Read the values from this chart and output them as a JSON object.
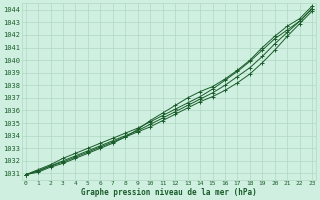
{
  "xlabel_label": "Graphe pression niveau de la mer (hPa)",
  "x_ticks": [
    0,
    1,
    2,
    3,
    4,
    5,
    6,
    7,
    8,
    9,
    10,
    11,
    12,
    13,
    14,
    15,
    16,
    17,
    18,
    19,
    20,
    21,
    22,
    23
  ],
  "ylim": [
    1030.5,
    1044.5
  ],
  "xlim": [
    -0.3,
    23.3
  ],
  "yticks": [
    1031,
    1032,
    1033,
    1034,
    1035,
    1036,
    1037,
    1038,
    1039,
    1040,
    1041,
    1042,
    1043,
    1044
  ],
  "bg_color": "#cff0e0",
  "grid_color": "#b0d8c4",
  "line_color": "#1a5c2a",
  "series": [
    [
      1030.9,
      1031.2,
      1031.6,
      1031.9,
      1032.3,
      1032.7,
      1033.1,
      1033.5,
      1033.9,
      1034.3,
      1034.7,
      1035.2,
      1035.7,
      1036.2,
      1036.7,
      1037.1,
      1037.6,
      1038.2,
      1038.9,
      1039.8,
      1040.8,
      1041.9,
      1042.9,
      1043.9
    ],
    [
      1030.9,
      1031.3,
      1031.7,
      1032.2,
      1032.6,
      1033.0,
      1033.4,
      1033.8,
      1034.2,
      1034.6,
      1035.1,
      1035.6,
      1036.1,
      1036.6,
      1037.1,
      1037.7,
      1038.4,
      1039.1,
      1039.9,
      1040.8,
      1041.7,
      1042.4,
      1043.1,
      1044.1
    ],
    [
      1030.9,
      1031.1,
      1031.5,
      1031.8,
      1032.2,
      1032.6,
      1033.0,
      1033.4,
      1033.9,
      1034.5,
      1035.2,
      1035.8,
      1036.4,
      1037.0,
      1037.5,
      1037.9,
      1038.5,
      1039.2,
      1040.0,
      1041.0,
      1041.9,
      1042.7,
      1043.3,
      1044.3
    ],
    [
      1030.9,
      1031.2,
      1031.6,
      1032.0,
      1032.4,
      1032.8,
      1033.2,
      1033.6,
      1034.0,
      1034.4,
      1034.9,
      1035.4,
      1035.9,
      1036.4,
      1036.9,
      1037.4,
      1038.0,
      1038.7,
      1039.4,
      1040.3,
      1041.3,
      1042.2,
      1043.1,
      1044.1
    ]
  ]
}
